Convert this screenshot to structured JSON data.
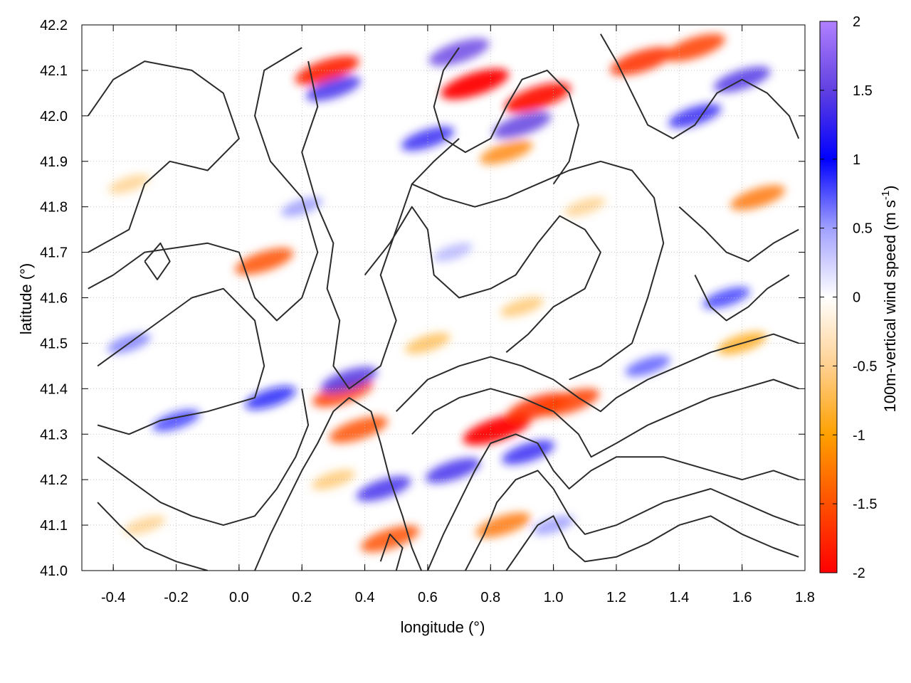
{
  "chart_data": {
    "type": "heatmap",
    "xlabel": "longitude (°)",
    "ylabel": "latitude (°)",
    "colorbar_label": "100m-vertical wind speed (m s",
    "colorbar_label_sup": "-1",
    "colorbar_label_end": ")",
    "xlim": [
      -0.5,
      1.8
    ],
    "ylim": [
      41.0,
      42.2
    ],
    "x_ticks": [
      "-0.4",
      "-0.2",
      "0.0",
      "0.2",
      "0.4",
      "0.6",
      "0.8",
      "1.0",
      "1.2",
      "1.4",
      "1.6",
      "1.8"
    ],
    "x_tick_values": [
      -0.4,
      -0.2,
      0.0,
      0.2,
      0.4,
      0.6,
      0.8,
      1.0,
      1.2,
      1.4,
      1.6,
      1.8
    ],
    "y_ticks": [
      "41.0",
      "41.1",
      "41.2",
      "41.3",
      "41.4",
      "41.5",
      "41.6",
      "41.7",
      "41.8",
      "41.9",
      "42.0",
      "42.1",
      "42.2"
    ],
    "y_tick_values": [
      41.0,
      41.1,
      41.2,
      41.3,
      41.4,
      41.5,
      41.6,
      41.7,
      41.8,
      41.9,
      42.0,
      42.1,
      42.2
    ],
    "color_range": [
      -2,
      2
    ],
    "colorbar_ticks": [
      "2",
      "1.5",
      "1",
      "0.5",
      "0",
      "-0.5",
      "-1",
      "-1.5",
      "-2"
    ],
    "colorbar_tick_values": [
      2,
      1.5,
      1,
      0.5,
      0,
      -0.5,
      -1,
      -1.5,
      -2
    ],
    "colormap": [
      {
        "value": -2.0,
        "color": "#ff0000"
      },
      {
        "value": -1.0,
        "color": "#ffa000"
      },
      {
        "value": -0.5,
        "color": "#ffd090"
      },
      {
        "value": 0.0,
        "color": "#ffffff"
      },
      {
        "value": 0.5,
        "color": "#a0a0ff"
      },
      {
        "value": 1.0,
        "color": "#0000ff"
      },
      {
        "value": 1.5,
        "color": "#6040e0"
      },
      {
        "value": 2.0,
        "color": "#b080ff"
      }
    ],
    "grid": true,
    "hotspots": [
      {
        "lon": 0.75,
        "lat": 42.07,
        "value": -2.0
      },
      {
        "lon": 0.95,
        "lat": 42.04,
        "value": -1.9
      },
      {
        "lon": 0.28,
        "lat": 42.1,
        "value": -1.8
      },
      {
        "lon": 1.28,
        "lat": 42.12,
        "value": -1.7
      },
      {
        "lon": 1.45,
        "lat": 42.15,
        "value": -1.6
      },
      {
        "lon": 0.08,
        "lat": 41.68,
        "value": -1.5
      },
      {
        "lon": 0.82,
        "lat": 41.31,
        "value": -2.0
      },
      {
        "lon": 0.95,
        "lat": 41.36,
        "value": -1.7
      },
      {
        "lon": 1.05,
        "lat": 41.37,
        "value": -1.6
      },
      {
        "lon": 0.33,
        "lat": 41.39,
        "value": -1.6
      },
      {
        "lon": 0.38,
        "lat": 41.31,
        "value": -1.5
      },
      {
        "lon": 0.48,
        "lat": 41.07,
        "value": -1.5
      },
      {
        "lon": 0.84,
        "lat": 41.1,
        "value": -1.3
      },
      {
        "lon": 1.65,
        "lat": 41.82,
        "value": -1.3
      },
      {
        "lon": 0.85,
        "lat": 41.92,
        "value": -1.2
      },
      {
        "lon": 1.6,
        "lat": 41.5,
        "value": -1.0
      },
      {
        "lon": 0.6,
        "lat": 41.5,
        "value": -0.8
      },
      {
        "lon": 0.9,
        "lat": 41.58,
        "value": -0.7
      },
      {
        "lon": 0.7,
        "lat": 42.14,
        "value": 1.6
      },
      {
        "lon": 0.9,
        "lat": 41.98,
        "value": 1.5
      },
      {
        "lon": 0.3,
        "lat": 42.06,
        "value": 1.3
      },
      {
        "lon": 1.6,
        "lat": 42.08,
        "value": 1.4
      },
      {
        "lon": 1.45,
        "lat": 42.0,
        "value": 1.2
      },
      {
        "lon": 0.6,
        "lat": 41.95,
        "value": 1.2
      },
      {
        "lon": 0.35,
        "lat": 41.42,
        "value": 1.4
      },
      {
        "lon": 0.46,
        "lat": 41.18,
        "value": 1.3
      },
      {
        "lon": 0.68,
        "lat": 41.22,
        "value": 1.3
      },
      {
        "lon": 0.92,
        "lat": 41.26,
        "value": 1.2
      },
      {
        "lon": 0.1,
        "lat": 41.38,
        "value": 1.1
      },
      {
        "lon": -0.2,
        "lat": 41.33,
        "value": 0.9
      },
      {
        "lon": -0.35,
        "lat": 41.5,
        "value": 0.7
      },
      {
        "lon": 1.3,
        "lat": 41.45,
        "value": 0.8
      },
      {
        "lon": 1.55,
        "lat": 41.6,
        "value": 0.9
      },
      {
        "lon": 0.2,
        "lat": 41.8,
        "value": 0.6
      },
      {
        "lon": 0.68,
        "lat": 41.7,
        "value": 0.5
      },
      {
        "lon": 1.0,
        "lat": 41.1,
        "value": 0.6
      },
      {
        "lon": -0.3,
        "lat": 41.1,
        "value": -0.6
      },
      {
        "lon": 0.3,
        "lat": 41.2,
        "value": -0.7
      },
      {
        "lon": -0.35,
        "lat": 41.85,
        "value": -0.6
      },
      {
        "lon": 1.1,
        "lat": 41.8,
        "value": -0.6
      }
    ],
    "contours": [
      [
        [
          -0.48,
          42.0
        ],
        [
          -0.4,
          42.08
        ],
        [
          -0.3,
          42.12
        ],
        [
          -0.15,
          42.1
        ],
        [
          -0.05,
          42.05
        ],
        [
          0.0,
          41.95
        ],
        [
          -0.1,
          41.88
        ],
        [
          -0.22,
          41.9
        ],
        [
          -0.3,
          41.85
        ],
        [
          -0.35,
          41.75
        ],
        [
          -0.48,
          41.7
        ]
      ],
      [
        [
          -0.48,
          41.62
        ],
        [
          -0.4,
          41.65
        ],
        [
          -0.3,
          41.7
        ],
        [
          -0.1,
          41.72
        ],
        [
          0.0,
          41.7
        ],
        [
          0.05,
          41.6
        ],
        [
          0.12,
          41.55
        ],
        [
          0.2,
          41.6
        ],
        [
          0.25,
          41.7
        ],
        [
          0.2,
          41.82
        ],
        [
          0.1,
          41.9
        ],
        [
          0.05,
          42.0
        ],
        [
          0.08,
          42.1
        ],
        [
          0.2,
          42.15
        ]
      ],
      [
        [
          -0.45,
          41.45
        ],
        [
          -0.35,
          41.5
        ],
        [
          -0.25,
          41.55
        ],
        [
          -0.15,
          41.6
        ],
        [
          -0.05,
          41.62
        ],
        [
          0.05,
          41.55
        ],
        [
          0.08,
          41.45
        ],
        [
          0.05,
          41.38
        ],
        [
          -0.1,
          41.35
        ],
        [
          -0.25,
          41.33
        ],
        [
          -0.35,
          41.3
        ],
        [
          -0.45,
          41.32
        ]
      ],
      [
        [
          0.22,
          42.12
        ],
        [
          0.25,
          42.02
        ],
        [
          0.2,
          41.92
        ],
        [
          0.25,
          41.8
        ],
        [
          0.3,
          41.72
        ],
        [
          0.28,
          41.62
        ],
        [
          0.32,
          41.55
        ],
        [
          0.3,
          41.45
        ],
        [
          0.35,
          41.4
        ],
        [
          0.45,
          41.45
        ],
        [
          0.5,
          41.55
        ],
        [
          0.45,
          41.65
        ],
        [
          0.5,
          41.75
        ],
        [
          0.55,
          41.85
        ],
        [
          0.62,
          41.9
        ],
        [
          0.7,
          41.95
        ]
      ],
      [
        [
          0.4,
          41.65
        ],
        [
          0.48,
          41.72
        ],
        [
          0.55,
          41.8
        ],
        [
          0.6,
          41.75
        ],
        [
          0.62,
          41.65
        ],
        [
          0.7,
          41.6
        ],
        [
          0.8,
          41.62
        ],
        [
          0.88,
          41.65
        ],
        [
          0.95,
          41.72
        ],
        [
          1.02,
          41.78
        ],
        [
          1.1,
          41.75
        ],
        [
          1.15,
          41.7
        ],
        [
          1.1,
          41.62
        ],
        [
          1.0,
          41.58
        ],
        [
          0.92,
          41.52
        ],
        [
          0.85,
          41.48
        ]
      ],
      [
        [
          0.55,
          41.85
        ],
        [
          0.65,
          41.82
        ],
        [
          0.75,
          41.8
        ],
        [
          0.85,
          41.82
        ],
        [
          0.95,
          41.85
        ],
        [
          1.05,
          41.88
        ],
        [
          1.15,
          41.9
        ],
        [
          1.25,
          41.88
        ],
        [
          1.32,
          41.82
        ],
        [
          1.35,
          41.72
        ],
        [
          1.3,
          41.6
        ],
        [
          1.25,
          41.5
        ],
        [
          1.15,
          41.45
        ],
        [
          1.05,
          41.42
        ]
      ],
      [
        [
          0.5,
          41.35
        ],
        [
          0.6,
          41.42
        ],
        [
          0.7,
          41.45
        ],
        [
          0.8,
          41.47
        ],
        [
          0.9,
          41.45
        ],
        [
          1.0,
          41.42
        ],
        [
          1.08,
          41.38
        ],
        [
          1.15,
          41.35
        ],
        [
          1.2,
          41.38
        ],
        [
          1.3,
          41.42
        ],
        [
          1.4,
          41.45
        ],
        [
          1.5,
          41.48
        ],
        [
          1.6,
          41.5
        ],
        [
          1.7,
          41.52
        ],
        [
          1.78,
          41.5
        ]
      ],
      [
        [
          0.55,
          41.3
        ],
        [
          0.62,
          41.35
        ],
        [
          0.7,
          41.38
        ],
        [
          0.8,
          41.4
        ],
        [
          0.9,
          41.38
        ],
        [
          1.0,
          41.35
        ],
        [
          1.08,
          41.3
        ],
        [
          1.12,
          41.25
        ],
        [
          1.2,
          41.28
        ],
        [
          1.3,
          41.32
        ],
        [
          1.4,
          41.35
        ],
        [
          1.5,
          41.38
        ],
        [
          1.6,
          41.4
        ],
        [
          1.7,
          41.42
        ],
        [
          1.78,
          41.4
        ]
      ],
      [
        [
          0.6,
          41.0
        ],
        [
          0.65,
          41.08
        ],
        [
          0.7,
          41.15
        ],
        [
          0.75,
          41.22
        ],
        [
          0.8,
          41.28
        ],
        [
          0.88,
          41.3
        ],
        [
          0.95,
          41.28
        ],
        [
          1.0,
          41.22
        ],
        [
          1.05,
          41.18
        ],
        [
          1.12,
          41.22
        ],
        [
          1.2,
          41.25
        ],
        [
          1.35,
          41.25
        ],
        [
          1.5,
          41.22
        ],
        [
          1.6,
          41.2
        ],
        [
          1.7,
          41.22
        ],
        [
          1.78,
          41.2
        ]
      ],
      [
        [
          0.72,
          41.0
        ],
        [
          0.78,
          41.08
        ],
        [
          0.82,
          41.15
        ],
        [
          0.88,
          41.2
        ],
        [
          0.95,
          41.22
        ],
        [
          1.0,
          41.18
        ],
        [
          1.05,
          41.12
        ],
        [
          1.1,
          41.08
        ],
        [
          1.2,
          41.1
        ],
        [
          1.35,
          41.15
        ],
        [
          1.5,
          41.18
        ],
        [
          1.6,
          41.15
        ],
        [
          1.7,
          41.12
        ],
        [
          1.78,
          41.1
        ]
      ],
      [
        [
          0.85,
          41.0
        ],
        [
          0.9,
          41.05
        ],
        [
          0.95,
          41.1
        ],
        [
          1.0,
          41.12
        ],
        [
          1.05,
          41.05
        ],
        [
          1.1,
          41.02
        ],
        [
          1.2,
          41.03
        ],
        [
          1.3,
          41.06
        ],
        [
          1.4,
          41.1
        ],
        [
          1.5,
          41.12
        ],
        [
          1.6,
          41.08
        ],
        [
          1.7,
          41.05
        ],
        [
          1.78,
          41.03
        ]
      ],
      [
        [
          0.05,
          41.0
        ],
        [
          0.1,
          41.08
        ],
        [
          0.15,
          41.15
        ],
        [
          0.2,
          41.22
        ],
        [
          0.25,
          41.28
        ],
        [
          0.3,
          41.35
        ],
        [
          0.35,
          41.38
        ],
        [
          0.42,
          41.35
        ],
        [
          0.45,
          41.28
        ],
        [
          0.48,
          41.2
        ],
        [
          0.52,
          41.12
        ],
        [
          0.55,
          41.05
        ],
        [
          0.58,
          41.0
        ]
      ],
      [
        [
          -0.45,
          41.25
        ],
        [
          -0.35,
          41.2
        ],
        [
          -0.25,
          41.15
        ],
        [
          -0.15,
          41.12
        ],
        [
          -0.05,
          41.1
        ],
        [
          0.05,
          41.12
        ],
        [
          0.12,
          41.18
        ],
        [
          0.18,
          41.25
        ],
        [
          0.22,
          41.32
        ],
        [
          0.2,
          41.4
        ]
      ],
      [
        [
          -0.45,
          41.15
        ],
        [
          -0.38,
          41.1
        ],
        [
          -0.3,
          41.05
        ],
        [
          -0.2,
          41.02
        ],
        [
          -0.1,
          41.0
        ]
      ],
      [
        [
          0.7,
          42.15
        ],
        [
          0.65,
          42.1
        ],
        [
          0.62,
          42.02
        ],
        [
          0.65,
          41.95
        ],
        [
          0.72,
          41.92
        ],
        [
          0.8,
          41.95
        ],
        [
          0.85,
          42.02
        ],
        [
          0.9,
          42.08
        ],
        [
          0.98,
          42.1
        ],
        [
          1.05,
          42.05
        ],
        [
          1.08,
          41.98
        ],
        [
          1.05,
          41.9
        ],
        [
          1.0,
          41.85
        ]
      ],
      [
        [
          1.15,
          42.18
        ],
        [
          1.2,
          42.12
        ],
        [
          1.25,
          42.05
        ],
        [
          1.3,
          41.98
        ],
        [
          1.38,
          41.95
        ],
        [
          1.45,
          41.98
        ],
        [
          1.52,
          42.05
        ],
        [
          1.6,
          42.08
        ],
        [
          1.68,
          42.05
        ],
        [
          1.75,
          42.0
        ],
        [
          1.78,
          41.95
        ]
      ],
      [
        [
          1.4,
          41.8
        ],
        [
          1.48,
          41.75
        ],
        [
          1.55,
          41.7
        ],
        [
          1.62,
          41.68
        ],
        [
          1.7,
          41.72
        ],
        [
          1.78,
          41.75
        ]
      ],
      [
        [
          1.45,
          41.65
        ],
        [
          1.5,
          41.58
        ],
        [
          1.55,
          41.55
        ],
        [
          1.62,
          41.58
        ],
        [
          1.68,
          41.62
        ],
        [
          1.75,
          41.65
        ]
      ],
      [
        [
          -0.3,
          41.68
        ],
        [
          -0.25,
          41.72
        ],
        [
          -0.22,
          41.68
        ],
        [
          -0.26,
          41.64
        ],
        [
          -0.3,
          41.68
        ]
      ],
      [
        [
          0.45,
          41.02
        ],
        [
          0.48,
          41.08
        ],
        [
          0.52,
          41.05
        ],
        [
          0.5,
          41.0
        ]
      ]
    ]
  }
}
